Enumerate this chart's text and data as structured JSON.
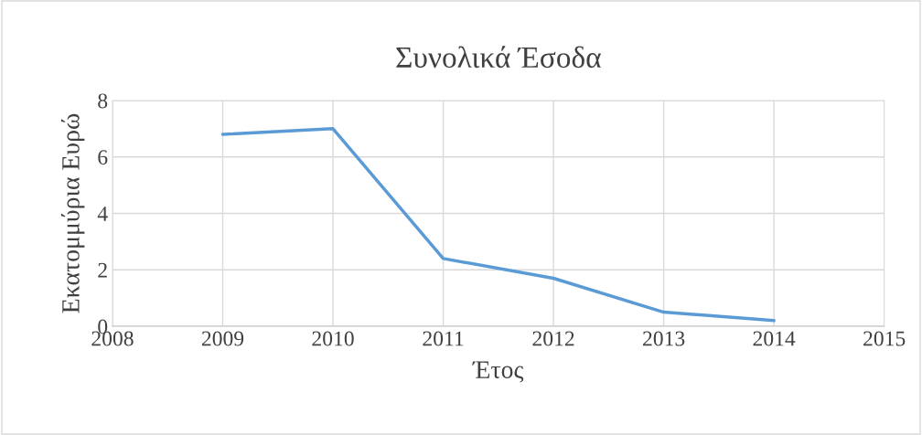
{
  "chart_data": {
    "type": "line",
    "title": "Συνολικά Έσοδα",
    "xlabel": "Έτος",
    "ylabel": "Εκατομμύρια Ευρώ",
    "x": [
      2009,
      2010,
      2011,
      2012,
      2013,
      2014
    ],
    "series": [
      {
        "color": "#5b9bd5",
        "values": [
          6.8,
          7.0,
          2.4,
          1.7,
          0.5,
          0.2
        ]
      }
    ],
    "xlim": [
      2008,
      2015
    ],
    "xticks": [
      2008,
      2009,
      2010,
      2011,
      2012,
      2013,
      2014,
      2015
    ],
    "ylim": [
      0,
      8
    ],
    "yticks": [
      0,
      2,
      4,
      6,
      8
    ],
    "grid": true,
    "marker": "none",
    "line_style": "solid"
  }
}
